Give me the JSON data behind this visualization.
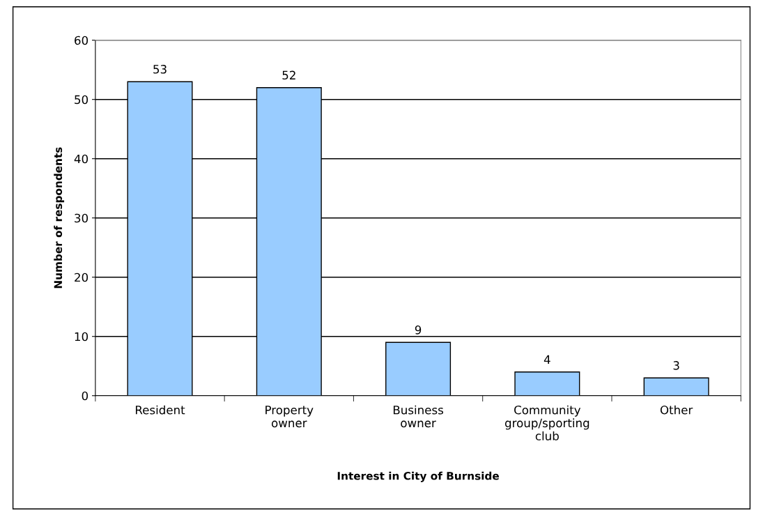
{
  "chart_data": {
    "type": "bar",
    "categories": [
      "Resident",
      "Property\nowner",
      "Business\nowner",
      "Community\ngroup/sporting\nclub",
      "Other"
    ],
    "values": [
      53,
      52,
      9,
      4,
      3
    ],
    "color": "#99ccff",
    "xlabel": "Interest in City of Burnside",
    "ylabel": "Number of respondents",
    "ylim": [
      0,
      60
    ],
    "yticks": [
      0,
      10,
      20,
      30,
      40,
      50,
      60
    ],
    "grid": "y",
    "data_labels": true
  }
}
